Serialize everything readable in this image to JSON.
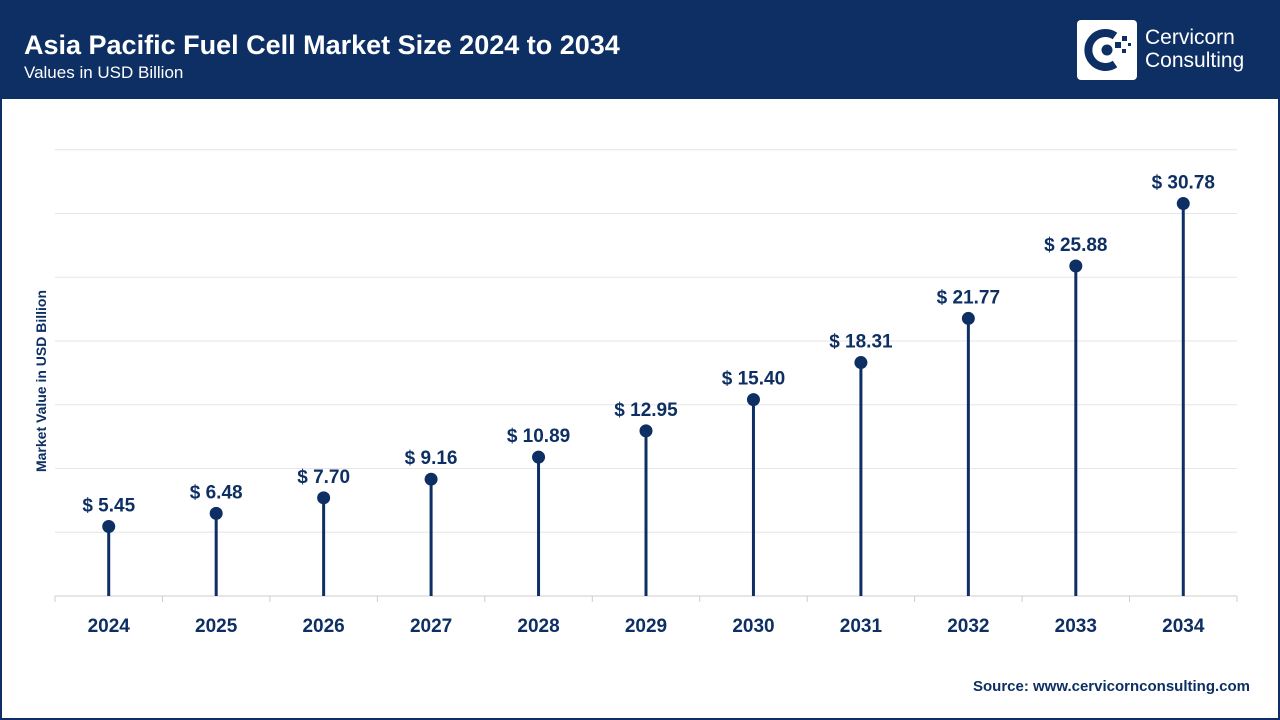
{
  "header": {
    "title": "Asia Pacific Fuel Cell Market Size 2024 to 2034",
    "subtitle": "Values in USD Billion"
  },
  "logo": {
    "line1": "Cervicorn",
    "line2": "Consulting"
  },
  "source": "Source: www.cervicornconsulting.com",
  "colors": {
    "primary": "#0d2f63",
    "grid": "#e6e6e6",
    "axis": "#cccccc"
  },
  "chart_data": {
    "type": "lollipop",
    "title": "Asia Pacific Fuel Cell Market Size 2024 to 2034",
    "xlabel": "",
    "ylabel": "Market Value in USD Billion",
    "ylim": [
      0,
      35
    ],
    "categories": [
      "2024",
      "2025",
      "2026",
      "2027",
      "2028",
      "2029",
      "2030",
      "2031",
      "2032",
      "2033",
      "2034"
    ],
    "values": [
      5.45,
      6.48,
      7.7,
      9.16,
      10.89,
      12.95,
      15.4,
      18.31,
      21.77,
      25.88,
      30.78
    ],
    "labels": [
      "$ 5.45",
      "$ 6.48",
      "$ 7.70",
      "$ 9.16",
      "$ 10.89",
      "$ 12.95",
      "$ 15.40",
      "$ 18.31",
      "$ 21.77",
      "$ 25.88",
      "$ 30.78"
    ],
    "grid": true
  }
}
